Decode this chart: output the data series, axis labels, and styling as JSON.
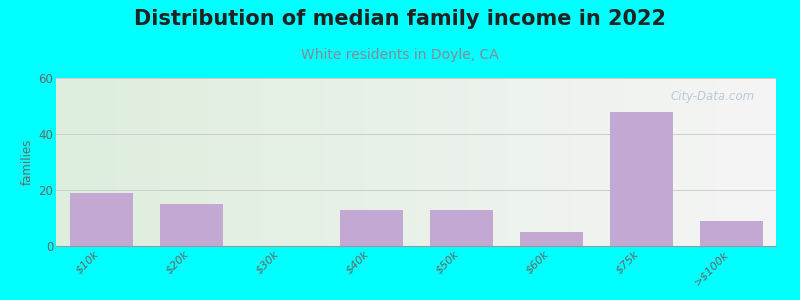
{
  "title": "Distribution of median family income in 2022",
  "subtitle": "White residents in Doyle, CA",
  "ylabel": "families",
  "categories": [
    "$10k",
    "$20k",
    "$30k",
    "$40k",
    "$50k",
    "$60k",
    "$75k",
    ">$100k"
  ],
  "values": [
    19,
    15,
    0,
    13,
    13,
    5,
    48,
    9
  ],
  "bar_color": "#c4a8d4",
  "background_color": "#00ffff",
  "plot_bg_left": "#ddeedd",
  "plot_bg_right": "#f5f5f5",
  "ylim": [
    0,
    60
  ],
  "yticks": [
    0,
    20,
    40,
    60
  ],
  "title_fontsize": 15,
  "subtitle_fontsize": 10,
  "subtitle_color": "#888899",
  "watermark": "City-Data.com",
  "grid_color": "#cccccc",
  "tick_label_color": "#666666"
}
